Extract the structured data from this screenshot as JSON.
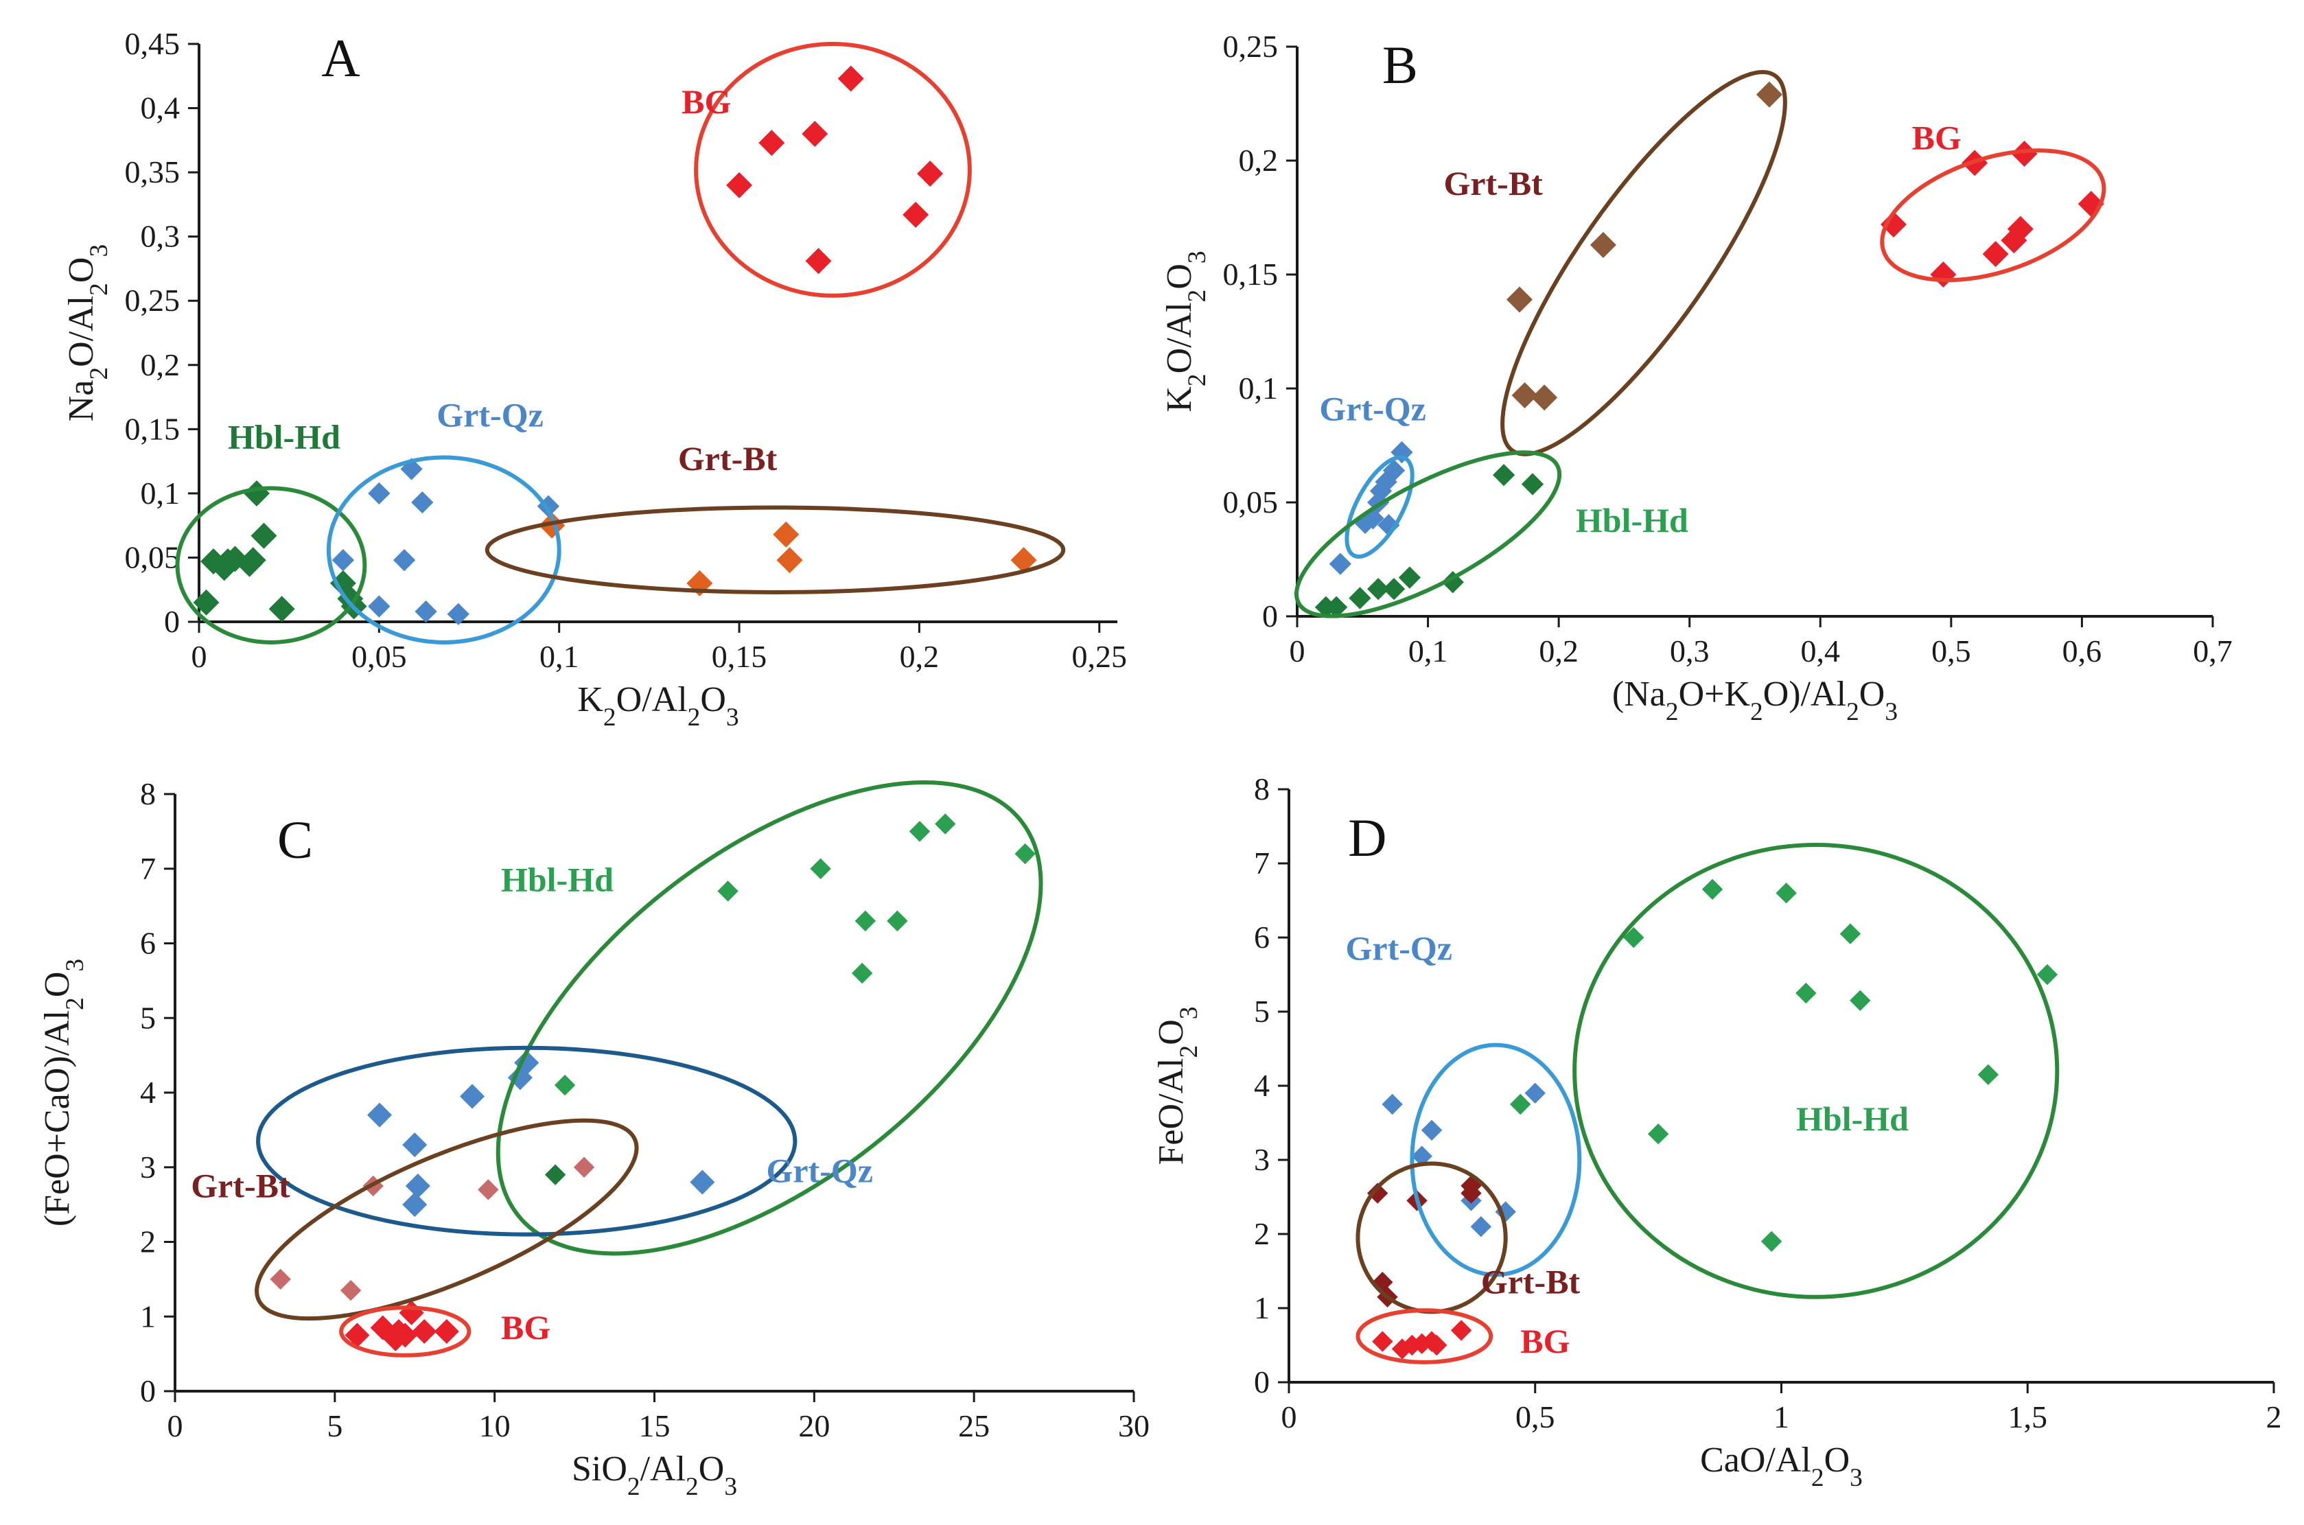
{
  "colors": {
    "BG": "#e8202a",
    "Grt-Qz": "#4a86c8",
    "Hbl-Hd": "#1f7a3a",
    "Hbl-Hd-light": "#2aa050",
    "Grt-Bt": "#7a4a2a",
    "Grt-Bt-pt": "#8b5a3a",
    "Grt-Bt-orange": "#e06020",
    "Grt-Bt-pink": "#c86a6a",
    "Grt-Bt-dark": "#8a1c1c",
    "ellipse-BG": "#e84030",
    "ellipse-GrtQz": "#3a9ad6",
    "ellipse-GrtQz-dark": "#1d5a8c",
    "ellipse-HblHd": "#2a8a3a",
    "ellipse-GrtBt": "#6a4020",
    "label-GrtBt": "#7a2020"
  },
  "chart_data": [
    {
      "type": "scatter",
      "panel": "A",
      "xlabel": "K2O/Al2O3",
      "ylabel": "Na2O/Al2O3",
      "xlim": [
        0,
        0.255
      ],
      "ylim": [
        0,
        0.45
      ],
      "xticks": [
        0,
        0.05,
        0.1,
        0.15,
        0.2,
        0.25
      ],
      "xtick_labels": [
        "0",
        "0,05",
        "0,1",
        "0,15",
        "0,2",
        "0,25"
      ],
      "yticks": [
        0,
        0.05,
        0.1,
        0.15,
        0.2,
        0.25,
        0.3,
        0.35,
        0.4,
        0.45
      ],
      "ytick_labels": [
        "0",
        "0,05",
        "0,1",
        "0,15",
        "0,2",
        "0,25",
        "0,3",
        "0,35",
        "0,4",
        "0,45"
      ],
      "series": [
        {
          "name": "BG",
          "color": "BG",
          "size": 1.0,
          "x": [
            0.15,
            0.159,
            0.171,
            0.172,
            0.181,
            0.199,
            0.203
          ],
          "y": [
            0.34,
            0.373,
            0.38,
            0.281,
            0.423,
            0.317,
            0.349
          ]
        },
        {
          "name": "Hbl-Hd",
          "color": "Hbl-Hd",
          "size": 1.0,
          "x": [
            0.002,
            0.004,
            0.007,
            0.008,
            0.01,
            0.014,
            0.015,
            0.016,
            0.018,
            0.023,
            0.04,
            0.042,
            0.043
          ],
          "y": [
            0.015,
            0.047,
            0.042,
            0.047,
            0.049,
            0.045,
            0.048,
            0.1,
            0.067,
            0.01,
            0.03,
            0.018,
            0.012
          ]
        },
        {
          "name": "Grt-Qz",
          "color": "Grt-Qz",
          "size": 0.85,
          "x": [
            0.04,
            0.05,
            0.05,
            0.057,
            0.059,
            0.062,
            0.063,
            0.072,
            0.097
          ],
          "y": [
            0.048,
            0.1,
            0.012,
            0.048,
            0.119,
            0.093,
            0.008,
            0.006,
            0.09
          ]
        },
        {
          "name": "Grt-Bt",
          "color": "Grt-Bt-orange",
          "size": 1.0,
          "x": [
            0.098,
            0.139,
            0.163,
            0.164,
            0.229
          ],
          "y": [
            0.075,
            0.03,
            0.068,
            0.048,
            0.048
          ]
        }
      ],
      "annotations": [
        {
          "text": "BG",
          "color": "BG",
          "x": 0.134,
          "y": 0.396
        },
        {
          "text": "Hbl-Hd",
          "color": "Hbl-Hd",
          "x": 0.008,
          "y": 0.135
        },
        {
          "text": "Grt-Qz",
          "color": "Grt-Qz",
          "x": 0.066,
          "y": 0.152
        },
        {
          "text": "Grt-Bt",
          "color": "label-GrtBt",
          "x": 0.133,
          "y": 0.118
        }
      ],
      "ellipses": [
        {
          "group": "BG",
          "color": "ellipse-BG",
          "cx": 0.176,
          "cy": 0.352,
          "rx": 0.038,
          "ry": 0.098
        },
        {
          "group": "Hbl-Hd",
          "color": "ellipse-HblHd",
          "cx": 0.02,
          "cy": 0.044,
          "rx": 0.026,
          "ry": 0.06
        },
        {
          "group": "Grt-Qz",
          "color": "ellipse-GrtQz",
          "cx": 0.068,
          "cy": 0.056,
          "rx": 0.032,
          "ry": 0.072
        },
        {
          "group": "Grt-Bt",
          "color": "ellipse-GrtBt",
          "cx": 0.16,
          "cy": 0.056,
          "rx": 0.08,
          "ry": 0.033
        }
      ],
      "panel_label": "A",
      "panel_label_pos": [
        0.034,
        0.425
      ]
    },
    {
      "type": "scatter",
      "panel": "B",
      "xlabel": "(Na2O+K2O)/Al2O3",
      "ylabel": "K2O/Al2O3",
      "xlim": [
        0,
        0.7
      ],
      "ylim": [
        0,
        0.25
      ],
      "xticks": [
        0,
        0.1,
        0.2,
        0.3,
        0.4,
        0.5,
        0.6,
        0.7
      ],
      "xtick_labels": [
        "0",
        "0,1",
        "0,2",
        "0,3",
        "0,4",
        "0,5",
        "0,6",
        "0,7"
      ],
      "yticks": [
        0,
        0.05,
        0.1,
        0.15,
        0.2,
        0.25
      ],
      "ytick_labels": [
        "0",
        "0,05",
        "0,1",
        "0,15",
        "0,2",
        "0,25"
      ],
      "series": [
        {
          "name": "BG",
          "color": "BG",
          "size": 1.0,
          "x": [
            0.456,
            0.494,
            0.518,
            0.534,
            0.548,
            0.553,
            0.556,
            0.607
          ],
          "y": [
            0.172,
            0.15,
            0.199,
            0.159,
            0.165,
            0.17,
            0.203,
            0.181
          ]
        },
        {
          "name": "Grt-Bt",
          "color": "Grt-Bt-pt",
          "size": 1.0,
          "x": [
            0.17,
            0.174,
            0.189,
            0.234,
            0.361
          ],
          "y": [
            0.139,
            0.097,
            0.096,
            0.163,
            0.229
          ]
        },
        {
          "name": "Grt-Qz",
          "color": "Grt-Qz",
          "size": 0.85,
          "x": [
            0.033,
            0.052,
            0.058,
            0.062,
            0.064,
            0.068,
            0.07,
            0.074,
            0.08
          ],
          "y": [
            0.023,
            0.041,
            0.043,
            0.05,
            0.055,
            0.059,
            0.04,
            0.064,
            0.072
          ]
        },
        {
          "name": "Hbl-Hd",
          "color": "Hbl-Hd",
          "size": 0.85,
          "x": [
            0.022,
            0.03,
            0.048,
            0.062,
            0.074,
            0.086,
            0.119,
            0.158,
            0.18
          ],
          "y": [
            0.004,
            0.004,
            0.008,
            0.012,
            0.012,
            0.017,
            0.015,
            0.062,
            0.058
          ]
        }
      ],
      "annotations": [
        {
          "text": "BG",
          "color": "BG",
          "x": 0.47,
          "y": 0.205
        },
        {
          "text": "Grt-Bt",
          "color": "label-GrtBt",
          "x": 0.112,
          "y": 0.185
        },
        {
          "text": "Grt-Qz",
          "color": "Grt-Qz",
          "x": 0.017,
          "y": 0.086
        },
        {
          "text": "Hbl-Hd",
          "color": "Hbl-Hd-light",
          "x": 0.213,
          "y": 0.037
        }
      ],
      "ellipses": [
        {
          "group": "BG",
          "color": "ellipse-BG",
          "cx": 0.532,
          "cy": 0.176,
          "rx": 0.088,
          "ry": 0.025,
          "angle": -18
        },
        {
          "group": "Grt-Bt",
          "color": "ellipse-GrtBt",
          "cx": 0.265,
          "cy": 0.155,
          "rx": 0.175,
          "ry": 0.028,
          "angle": -55
        },
        {
          "group": "Grt-Qz",
          "color": "ellipse-GrtQz",
          "cx": 0.063,
          "cy": 0.048,
          "rx": 0.042,
          "ry": 0.01,
          "angle": -62
        },
        {
          "group": "Hbl-Hd",
          "color": "ellipse-HblHd",
          "cx": 0.1,
          "cy": 0.036,
          "rx": 0.112,
          "ry": 0.022,
          "angle": -28
        }
      ],
      "panel_label": "B",
      "panel_label_pos": [
        0.065,
        0.234
      ]
    },
    {
      "type": "scatter",
      "panel": "C",
      "xlabel": "SiO2/Al2O3",
      "ylabel": "(FeO+CaO)/Al2O3",
      "xlim": [
        0,
        30
      ],
      "ylim": [
        0,
        8
      ],
      "xticks": [
        0,
        5,
        10,
        15,
        20,
        25,
        30
      ],
      "xtick_labels": [
        "0",
        "5",
        "10",
        "15",
        "20",
        "25",
        "30"
      ],
      "yticks": [
        0,
        1,
        2,
        3,
        4,
        5,
        6,
        7,
        8
      ],
      "ytick_labels": [
        "0",
        "1",
        "2",
        "3",
        "4",
        "5",
        "6",
        "7",
        "8"
      ],
      "series": [
        {
          "name": "Hbl-Hd",
          "color": "Hbl-Hd-light",
          "size": 0.8,
          "x": [
            12.2,
            17.3,
            20.2,
            21.5,
            21.6,
            22.6,
            23.3,
            24.1,
            26.6
          ],
          "y": [
            4.1,
            6.7,
            7.0,
            5.6,
            6.3,
            6.3,
            7.5,
            7.6,
            7.2
          ]
        },
        {
          "name": "Hbl-Hd-dark",
          "color": "Hbl-Hd",
          "size": 0.8,
          "x": [
            11.9
          ],
          "y": [
            2.9
          ]
        },
        {
          "name": "Grt-Qz",
          "color": "Grt-Qz",
          "size": 0.95,
          "x": [
            6.4,
            7.5,
            7.6,
            7.5,
            9.3,
            10.8,
            11.0,
            16.5
          ],
          "y": [
            3.7,
            3.3,
            2.75,
            2.5,
            3.95,
            4.2,
            4.4,
            2.8
          ]
        },
        {
          "name": "Grt-Bt",
          "color": "Grt-Bt-pink",
          "size": 0.8,
          "x": [
            3.3,
            5.5,
            6.2,
            9.8,
            12.8
          ],
          "y": [
            1.5,
            1.35,
            2.75,
            2.7,
            3.0
          ]
        },
        {
          "name": "BG",
          "color": "BG",
          "size": 0.95,
          "x": [
            5.7,
            6.5,
            6.9,
            7.0,
            7.2,
            7.4,
            7.8,
            8.5
          ],
          "y": [
            0.75,
            0.85,
            0.7,
            0.8,
            0.75,
            1.05,
            0.8,
            0.8
          ]
        }
      ],
      "annotations": [
        {
          "text": "Hbl-Hd",
          "color": "Hbl-Hd-light",
          "x": 10.2,
          "y": 6.7
        },
        {
          "text": "Grt-Qz",
          "color": "Grt-Qz",
          "x": 18.5,
          "y": 2.8
        },
        {
          "text": "Grt-Bt",
          "color": "label-GrtBt",
          "x": 0.5,
          "y": 2.6
        },
        {
          "text": "BG",
          "color": "BG",
          "x": 10.2,
          "y": 0.7
        }
      ],
      "ellipses": [
        {
          "group": "Hbl-Hd",
          "color": "ellipse-HblHd",
          "cx": 18.6,
          "cy": 5.0,
          "rx": 10.0,
          "ry": 2.2,
          "angle": -38
        },
        {
          "group": "Grt-Qz",
          "color": "ellipse-GrtQz-dark",
          "cx": 11.0,
          "cy": 3.35,
          "rx": 8.4,
          "ry": 1.25,
          "angle": 0
        },
        {
          "group": "Grt-Bt",
          "color": "ellipse-GrtBt",
          "cx": 8.5,
          "cy": 2.3,
          "rx": 6.4,
          "ry": 0.85,
          "angle": -23
        },
        {
          "group": "BG",
          "color": "ellipse-BG",
          "cx": 7.2,
          "cy": 0.8,
          "rx": 2.0,
          "ry": 0.32,
          "angle": 0
        }
      ],
      "panel_label": "C",
      "panel_label_pos": [
        3.2,
        7.15
      ]
    },
    {
      "type": "scatter",
      "panel": "D",
      "xlabel": "CaO/Al2O3",
      "ylabel": "FeO/Al2O3",
      "xlim": [
        0,
        2
      ],
      "ylim": [
        0,
        8
      ],
      "xticks": [
        0,
        0.5,
        1,
        1.5,
        2
      ],
      "xtick_labels": [
        "0",
        "0,5",
        "1",
        "1,5",
        "2"
      ],
      "yticks": [
        0,
        1,
        2,
        3,
        4,
        5,
        6,
        7,
        8
      ],
      "ytick_labels": [
        "0",
        "1",
        "2",
        "3",
        "4",
        "5",
        "6",
        "7",
        "8"
      ],
      "series": [
        {
          "name": "Hbl-Hd",
          "color": "Hbl-Hd-light",
          "size": 0.8,
          "x": [
            0.47,
            0.7,
            0.75,
            0.86,
            0.98,
            1.01,
            1.05,
            1.14,
            1.16,
            1.42,
            1.54
          ],
          "y": [
            3.75,
            6.0,
            3.35,
            6.65,
            1.9,
            6.6,
            5.25,
            6.05,
            5.15,
            4.15,
            5.5
          ]
        },
        {
          "name": "Grt-Qz",
          "color": "Grt-Qz",
          "size": 0.8,
          "x": [
            0.21,
            0.27,
            0.29,
            0.37,
            0.39,
            0.44,
            0.5
          ],
          "y": [
            3.75,
            3.05,
            3.4,
            2.45,
            2.1,
            2.3,
            3.9
          ]
        },
        {
          "name": "Grt-Bt",
          "color": "Grt-Bt-dark",
          "size": 0.8,
          "x": [
            0.18,
            0.19,
            0.2,
            0.26,
            0.37,
            0.37
          ],
          "y": [
            2.55,
            1.35,
            1.15,
            2.45,
            2.65,
            2.55
          ]
        },
        {
          "name": "BG",
          "color": "BG",
          "size": 0.8,
          "x": [
            0.19,
            0.23,
            0.25,
            0.27,
            0.29,
            0.3,
            0.35
          ],
          "y": [
            0.55,
            0.45,
            0.5,
            0.52,
            0.55,
            0.5,
            0.7
          ]
        }
      ],
      "annotations": [
        {
          "text": "Grt-Qz",
          "color": "Grt-Qz",
          "x": 0.115,
          "y": 5.7
        },
        {
          "text": "Hbl-Hd",
          "color": "Hbl-Hd-light",
          "x": 1.03,
          "y": 3.4
        },
        {
          "text": "Grt-Bt",
          "color": "label-GrtBt",
          "x": 0.39,
          "y": 1.2
        },
        {
          "text": "BG",
          "color": "BG",
          "x": 0.47,
          "y": 0.4
        }
      ],
      "ellipses": [
        {
          "group": "Hbl-Hd",
          "color": "ellipse-HblHd",
          "cx": 1.07,
          "cy": 4.2,
          "rx": 0.49,
          "ry": 3.05,
          "angle": 0
        },
        {
          "group": "Grt-Qz",
          "color": "ellipse-GrtQz",
          "cx": 0.42,
          "cy": 3.0,
          "rx": 0.17,
          "ry": 1.55,
          "angle": 0
        },
        {
          "group": "Grt-Bt",
          "color": "ellipse-GrtBt",
          "cx": 0.29,
          "cy": 1.95,
          "rx": 0.15,
          "ry": 1.0,
          "angle": 0
        },
        {
          "group": "BG",
          "color": "ellipse-BG",
          "cx": 0.275,
          "cy": 0.62,
          "rx": 0.135,
          "ry": 0.35,
          "angle": 0
        }
      ],
      "panel_label": "D",
      "panel_label_pos": [
        0.12,
        7.1
      ]
    }
  ]
}
